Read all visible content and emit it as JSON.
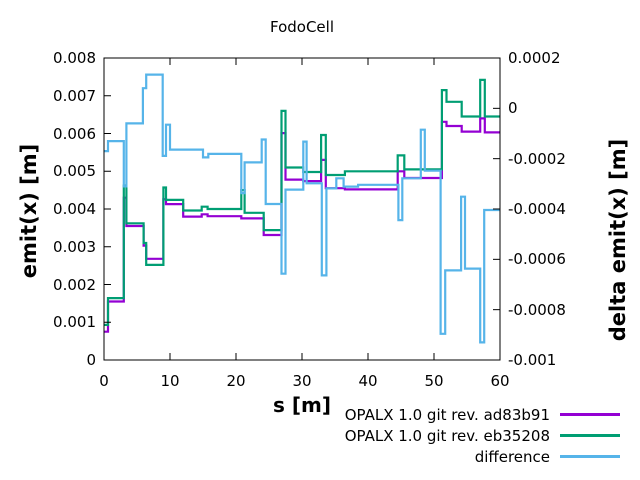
{
  "title": "FodoCell",
  "axes": {
    "x": {
      "label": "s [m]",
      "min": 0,
      "max": 60,
      "tick_values": [
        0,
        10,
        20,
        30,
        40,
        50,
        60
      ],
      "tick_labels": [
        "0",
        "10",
        "20",
        "30",
        "40",
        "50",
        "60"
      ]
    },
    "y_left": {
      "label": "emit(x) [m]",
      "min": 0,
      "max": 0.008,
      "tick_values": [
        0,
        0.001,
        0.002,
        0.003,
        0.004,
        0.005,
        0.006,
        0.007,
        0.008
      ],
      "tick_labels": [
        "0",
        "0.001",
        "0.002",
        "0.003",
        "0.004",
        "0.005",
        "0.006",
        "0.007",
        "0.008"
      ]
    },
    "y_right": {
      "label": "delta emit(x) [m]",
      "min": -0.001,
      "max": 0.0002,
      "tick_values": [
        0.0002,
        0,
        -0.0002,
        -0.0004,
        -0.0006,
        -0.0008,
        -0.001
      ],
      "tick_labels": [
        "0.0002",
        "0",
        "-0.0002",
        "-0.0004",
        "-0.0006",
        "-0.0008",
        "-0.001"
      ]
    }
  },
  "legend": [
    {
      "label": "OPALX 1.0 git rev. ad83b91",
      "color": "#9400d3",
      "series": "opalx_ad83b91"
    },
    {
      "label": "OPALX 1.0 git rev. eb35208",
      "color": "#009e73",
      "series": "opalx_eb35208"
    },
    {
      "label": "difference",
      "color": "#56b4e9",
      "series": "difference"
    }
  ],
  "chart_data": {
    "type": "line",
    "line_style": "steps",
    "title": "FodoCell",
    "xlabel": "s [m]",
    "ylabel_left": "emit(x) [m]",
    "ylabel_right": "delta emit(x) [m]",
    "xlim": [
      0,
      60
    ],
    "ylim_left": [
      0,
      0.008
    ],
    "ylim_right": [
      -0.001,
      0.0002
    ],
    "grid": false,
    "legend_position": "below-right",
    "series": [
      {
        "name": "OPALX 1.0 git rev. ad83b91",
        "axis": "left",
        "color": "#9400d3",
        "steps": [
          [
            0.0,
            0.00075
          ],
          [
            0.6,
            0.00155
          ],
          [
            3.0,
            0.0043
          ],
          [
            3.4,
            0.00355
          ],
          [
            6.0,
            0.00303
          ],
          [
            6.4,
            0.00268
          ],
          [
            9.0,
            0.00426
          ],
          [
            9.4,
            0.00413
          ],
          [
            12.0,
            0.0038
          ],
          [
            14.8,
            0.00386
          ],
          [
            15.7,
            0.00381
          ],
          [
            20.8,
            0.00375
          ],
          [
            24.2,
            0.00331
          ],
          [
            26.9,
            0.00601
          ],
          [
            27.5,
            0.00478
          ],
          [
            30.2,
            0.00474
          ],
          [
            32.9,
            0.0053
          ],
          [
            33.6,
            0.00455
          ],
          [
            36.5,
            0.00452
          ],
          [
            44.5,
            0.005
          ],
          [
            45.5,
            0.00482
          ],
          [
            51.2,
            0.00631
          ],
          [
            51.9,
            0.0062
          ],
          [
            54.2,
            0.00605
          ],
          [
            57.0,
            0.0064
          ],
          [
            57.7,
            0.00603
          ],
          [
            60.0,
            0.00603
          ]
        ]
      },
      {
        "name": "OPALX 1.0 git rev. eb35208",
        "axis": "left",
        "color": "#009e73",
        "steps": [
          [
            0.0,
            0.00093
          ],
          [
            0.6,
            0.00164
          ],
          [
            3.0,
            0.00462
          ],
          [
            3.4,
            0.00362
          ],
          [
            6.0,
            0.0031
          ],
          [
            6.4,
            0.00252
          ],
          [
            9.0,
            0.00457
          ],
          [
            9.4,
            0.00424
          ],
          [
            12.0,
            0.00396
          ],
          [
            14.8,
            0.00406
          ],
          [
            15.7,
            0.004
          ],
          [
            20.8,
            0.0045
          ],
          [
            21.3,
            0.0039
          ],
          [
            24.2,
            0.00344
          ],
          [
            26.9,
            0.0066
          ],
          [
            27.5,
            0.0051
          ],
          [
            30.2,
            0.00498
          ],
          [
            32.9,
            0.00596
          ],
          [
            33.6,
            0.0049
          ],
          [
            36.5,
            0.005
          ],
          [
            44.5,
            0.00542
          ],
          [
            45.5,
            0.00505
          ],
          [
            51.2,
            0.00715
          ],
          [
            51.9,
            0.00684
          ],
          [
            54.2,
            0.00645
          ],
          [
            57.0,
            0.00742
          ],
          [
            57.7,
            0.00645
          ],
          [
            60.0,
            0.00645
          ]
        ]
      },
      {
        "name": "difference",
        "axis": "right",
        "color": "#56b4e9",
        "steps": [
          [
            0.0,
            -0.00017
          ],
          [
            0.6,
            -0.00013
          ],
          [
            3.0,
            -0.00031
          ],
          [
            3.4,
            -6e-05
          ],
          [
            5.9,
            8e-05
          ],
          [
            6.4,
            0.000134
          ],
          [
            8.9,
            -0.000189
          ],
          [
            9.4,
            -6.5e-05
          ],
          [
            10.0,
            -0.000164
          ],
          [
            15.0,
            -0.000195
          ],
          [
            15.8,
            -0.000181
          ],
          [
            20.8,
            -0.000337
          ],
          [
            21.3,
            -0.000215
          ],
          [
            23.9,
            -0.000124
          ],
          [
            24.5,
            -0.00038
          ],
          [
            26.9,
            -0.000657
          ],
          [
            27.5,
            -0.000323
          ],
          [
            30.2,
            -0.000132
          ],
          [
            30.7,
            -0.000298
          ],
          [
            33.0,
            -0.000664
          ],
          [
            33.7,
            -0.000318
          ],
          [
            35.2,
            -0.000278
          ],
          [
            36.3,
            -0.000311
          ],
          [
            38.5,
            -0.000304
          ],
          [
            44.6,
            -0.000444
          ],
          [
            45.2,
            -0.000278
          ],
          [
            48.0,
            -8.5e-05
          ],
          [
            48.6,
            -0.000248
          ],
          [
            51.0,
            -0.000896
          ],
          [
            51.7,
            -0.000644
          ],
          [
            54.1,
            -0.000351
          ],
          [
            54.7,
            -0.000637
          ],
          [
            57.0,
            -0.00093
          ],
          [
            57.6,
            -0.000404
          ],
          [
            60.0,
            -0.000404
          ]
        ]
      }
    ]
  }
}
